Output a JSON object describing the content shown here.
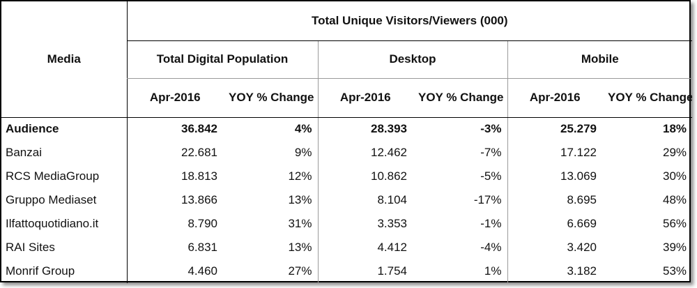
{
  "table": {
    "header": {
      "media_label": "Media",
      "group_title": "Total Unique Visitors/Viewers (000)",
      "sections": [
        {
          "label": "Total Digital Population"
        },
        {
          "label": "Desktop"
        },
        {
          "label": "Mobile"
        }
      ],
      "sub": {
        "period": "Apr-2016",
        "change": "YOY % Change"
      }
    },
    "rows": [
      {
        "name": "Audience",
        "cells": [
          "36.842",
          "4%",
          "28.393",
          "-3%",
          "25.279",
          "18%"
        ]
      },
      {
        "name": "Banzai",
        "cells": [
          "22.681",
          "9%",
          "12.462",
          "-7%",
          "17.122",
          "29%"
        ]
      },
      {
        "name": "RCS MediaGroup",
        "cells": [
          "18.813",
          "12%",
          "10.862",
          "-5%",
          "13.069",
          "30%"
        ]
      },
      {
        "name": "Gruppo Mediaset",
        "cells": [
          "13.866",
          "13%",
          "8.104",
          "-17%",
          "8.695",
          "48%"
        ]
      },
      {
        "name": "Ilfattoquotidiano.it",
        "cells": [
          "8.790",
          "31%",
          "3.353",
          "-1%",
          "6.669",
          "56%"
        ]
      },
      {
        "name": "RAI Sites",
        "cells": [
          "6.831",
          "13%",
          "4.412",
          "-4%",
          "3.420",
          "39%"
        ]
      },
      {
        "name": "Monrif Group",
        "cells": [
          "4.460",
          "27%",
          "1.754",
          "1%",
          "3.182",
          "53%"
        ]
      }
    ]
  }
}
